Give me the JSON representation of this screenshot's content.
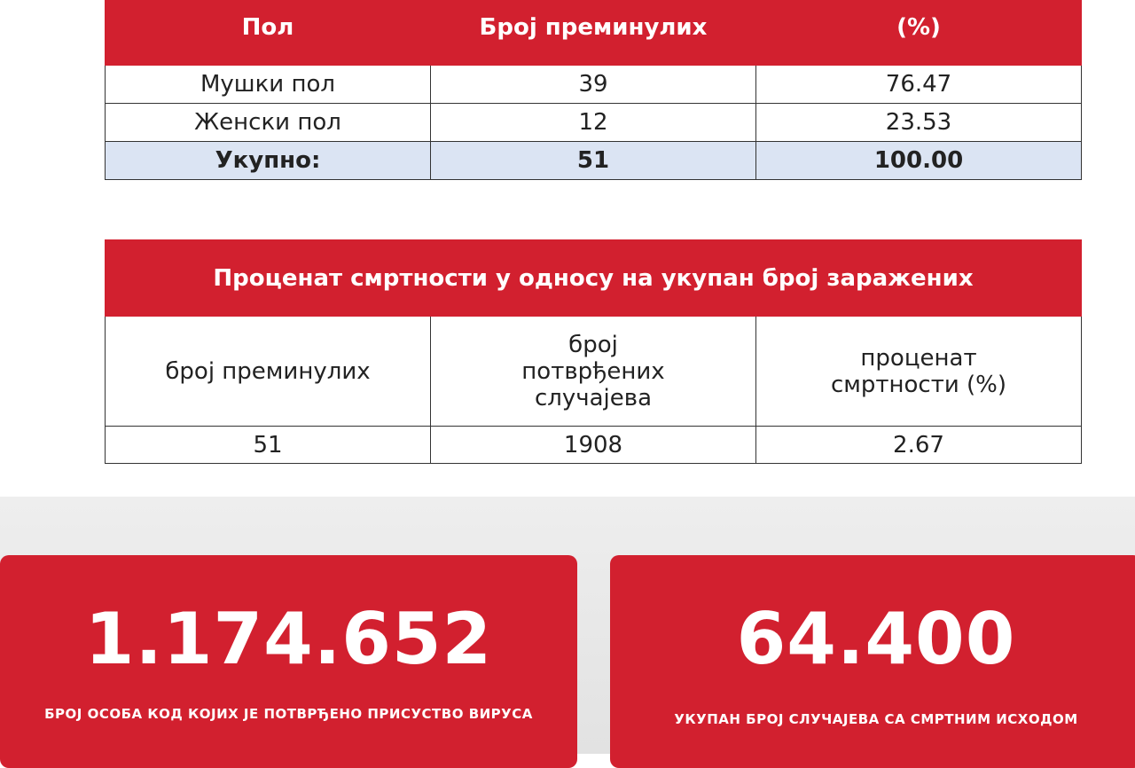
{
  "table1": {
    "header": [
      "Пол",
      "Број преминулих",
      "(%)"
    ],
    "rows": [
      [
        "Мушки пол",
        "39",
        "76.47"
      ],
      [
        "Женски пол",
        "12",
        "23.53"
      ]
    ],
    "total": [
      "Укупно:",
      "51",
      "100.00"
    ]
  },
  "table2": {
    "title": "Проценат смртности у односу на укупан број заражених",
    "header": [
      "број преминулих",
      "број потврђених случајева",
      "проценат смртности (%)"
    ],
    "row": [
      "51",
      "1908",
      "2.67"
    ]
  },
  "cards": [
    {
      "value": "1.174.652",
      "label": "БРОЈ ОСОБА КОД КОЈИХ ЈЕ ПОТВРЂЕНО ПРИСУСТВО ВИРУСА"
    },
    {
      "value": "64.400",
      "label": "УКУПАН БРОЈ СЛУЧАЈЕВА СА СМРТНИМ ИСХОДОМ"
    }
  ]
}
